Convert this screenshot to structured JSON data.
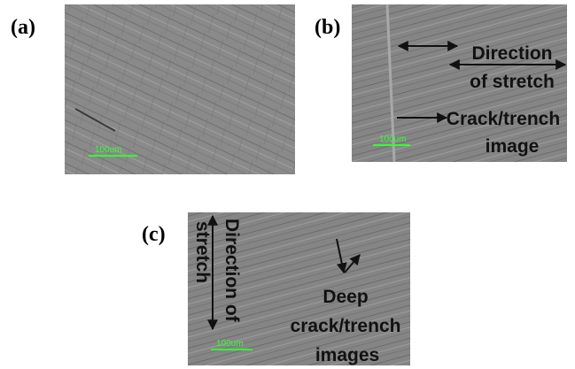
{
  "panels": [
    {
      "label": "(a)",
      "scale_bar": "100um"
    },
    {
      "label": "(b)",
      "scale_bar": "100um",
      "annotations": [
        {
          "lines": [
            "Direction",
            "of stretch"
          ]
        },
        {
          "lines": [
            "Crack/trench",
            "image"
          ]
        }
      ]
    },
    {
      "label": "(c)",
      "scale_bar": "100um",
      "annotations": [
        {
          "lines": [
            "Direction of",
            "stretch"
          ]
        },
        {
          "lines": [
            "Deep",
            "crack/trench",
            "images"
          ]
        }
      ]
    }
  ]
}
